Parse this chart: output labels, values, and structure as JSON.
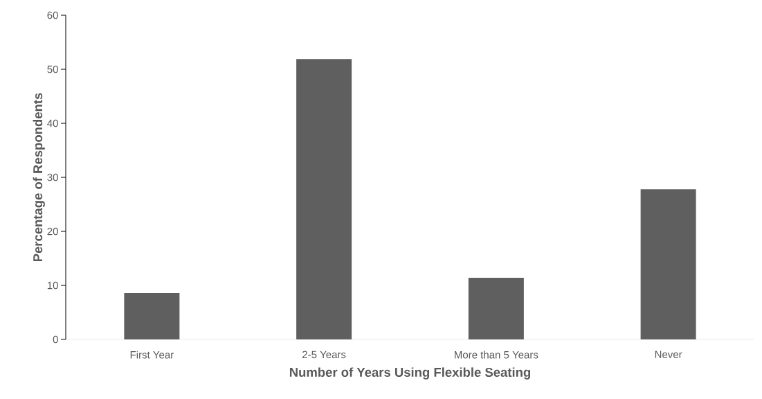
{
  "chart_data": {
    "type": "bar",
    "xlabel": "Number of Years Using Flexible Seating",
    "ylabel": "Percentage of Respondents",
    "categories": [
      "First Year",
      "2-5 Years",
      "More than 5 Years",
      "Never"
    ],
    "values": [
      8.6,
      51.9,
      11.4,
      27.8
    ],
    "color": "#5f5f5f",
    "ylim": [
      0,
      60
    ],
    "yticks": [
      0,
      10,
      20,
      30,
      40,
      50,
      60
    ]
  }
}
